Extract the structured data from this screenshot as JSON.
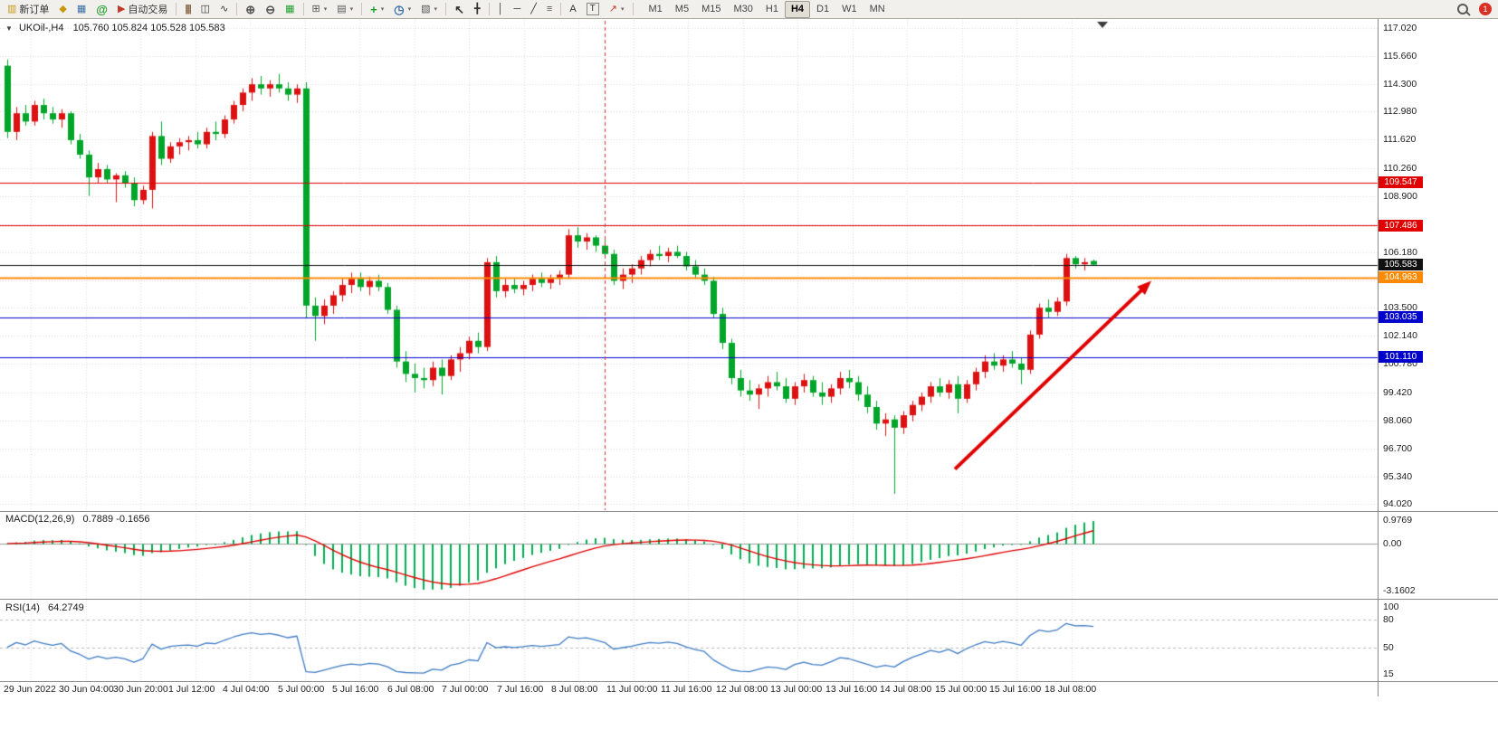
{
  "toolbar": {
    "new_order_label": "新订单",
    "autotrading_label": "自动交易",
    "timeframes": [
      "M1",
      "M5",
      "M15",
      "M30",
      "H1",
      "H4",
      "D1",
      "W1",
      "MN"
    ],
    "active_timeframe": "H4",
    "badge_count": "1",
    "icons": {
      "new_order": "▥",
      "market_watch": "◆",
      "data_window": "▦",
      "community": "@",
      "autotrading": "▶",
      "bars": "|||",
      "candles": "◫",
      "linechart": "∿",
      "zoom_in": "⊕",
      "zoom_out": "⊖",
      "tile": "▦",
      "new_chart": "⊞",
      "profiles": "▤",
      "indicators": "+",
      "periods": "◷",
      "templates": "▧",
      "cursor": "↖",
      "crosshair": "╋",
      "vline": "│",
      "hline": "─",
      "trendline": "╱",
      "fibonacci": "≡",
      "text": "A",
      "label": "T",
      "arrows": "↗",
      "caret": "▾",
      "collapse": "▼"
    }
  },
  "chart_data": [
    {
      "type": "candlestick",
      "title": "UKOil-,H4",
      "ohlc_text": "105.760 105.824 105.528 105.583",
      "timeframe": "H4",
      "up_color": "#dd1111",
      "down_color": "#00a52a",
      "ylim": [
        93.66,
        117.44
      ],
      "y_ticks": [
        "117.020",
        "115.660",
        "114.300",
        "112.980",
        "111.620",
        "110.260",
        "108.900",
        "107.540",
        "106.180",
        "104.820",
        "103.500",
        "102.140",
        "100.780",
        "99.420",
        "98.060",
        "96.700",
        "95.340",
        "94.020"
      ],
      "x_labels": [
        "29 Jun 2022",
        "30 Jun 04:00",
        "30 Jun 20:00",
        "1 Jul 12:00",
        "4 Jul 04:00",
        "5 Jul 00:00",
        "5 Jul 16:00",
        "6 Jul 08:00",
        "7 Jul 00:00",
        "7 Jul 16:00",
        "8 Jul 08:00",
        "11 Jul 00:00",
        "11 Jul 16:00",
        "12 Jul 08:00",
        "13 Jul 00:00",
        "13 Jul 16:00",
        "14 Jul 08:00",
        "15 Jul 00:00",
        "15 Jul 16:00",
        "18 Jul 08:00"
      ],
      "hlines": [
        {
          "price": 109.547,
          "label": "109.547",
          "color": "#e00000",
          "width": 1
        },
        {
          "price": 107.486,
          "label": "107.486",
          "color": "#e00000",
          "width": 1
        },
        {
          "price": 105.583,
          "label": "105.583",
          "color": "#111111",
          "width": 1
        },
        {
          "price": 104.963,
          "label": "104.963",
          "color": "#ff8a00",
          "width": 2
        },
        {
          "price": 103.035,
          "label": "103.035",
          "color": "#0000cd",
          "width": 1
        },
        {
          "price": 101.11,
          "label": "101.110",
          "color": "#0000cd",
          "width": 1
        }
      ],
      "annotations": [
        {
          "type": "trend-arrow",
          "from_bar": 104.7,
          "from_price": 95.7,
          "to_bar": 126.4,
          "to_price": 104.8,
          "color": "#e00000",
          "width": 4
        },
        {
          "type": "vline",
          "bar": 66,
          "color": "#cc3333",
          "style": "dashed"
        }
      ],
      "ohlc": [
        [
          115.2,
          115.5,
          111.7,
          112.0
        ],
        [
          112.0,
          113.2,
          111.6,
          112.9
        ],
        [
          112.9,
          113.3,
          112.3,
          112.5
        ],
        [
          112.5,
          113.5,
          112.3,
          113.3
        ],
        [
          113.3,
          113.6,
          112.6,
          112.9
        ],
        [
          112.9,
          113.2,
          112.4,
          112.6
        ],
        [
          112.6,
          113.1,
          112.2,
          112.9
        ],
        [
          112.9,
          113.0,
          111.4,
          111.6
        ],
        [
          111.6,
          111.9,
          110.7,
          110.9
        ],
        [
          110.9,
          111.1,
          108.9,
          109.8
        ],
        [
          109.8,
          110.5,
          109.5,
          110.2
        ],
        [
          110.2,
          110.4,
          109.5,
          109.7
        ],
        [
          109.7,
          110.0,
          108.6,
          109.9
        ],
        [
          109.9,
          110.1,
          109.3,
          109.5
        ],
        [
          109.5,
          109.8,
          108.4,
          108.7
        ],
        [
          108.7,
          109.4,
          108.5,
          109.2
        ],
        [
          109.2,
          112.0,
          108.3,
          111.8
        ],
        [
          111.8,
          112.5,
          110.4,
          110.7
        ],
        [
          110.7,
          111.5,
          110.5,
          111.3
        ],
        [
          111.3,
          111.7,
          110.9,
          111.5
        ],
        [
          111.5,
          111.8,
          111.1,
          111.6
        ],
        [
          111.6,
          112.0,
          111.2,
          111.4
        ],
        [
          111.4,
          112.2,
          111.2,
          112.0
        ],
        [
          112.0,
          112.5,
          111.6,
          111.9
        ],
        [
          111.9,
          112.8,
          111.7,
          112.6
        ],
        [
          112.6,
          113.5,
          112.4,
          113.3
        ],
        [
          113.3,
          114.1,
          113.0,
          113.9
        ],
        [
          113.9,
          114.6,
          113.5,
          114.3
        ],
        [
          114.3,
          114.7,
          113.8,
          114.1
        ],
        [
          114.1,
          114.5,
          113.7,
          114.3
        ],
        [
          114.3,
          114.8,
          113.9,
          114.1
        ],
        [
          114.1,
          114.4,
          113.5,
          113.8
        ],
        [
          113.8,
          114.3,
          113.4,
          114.1
        ],
        [
          114.1,
          114.4,
          103.0,
          103.6
        ],
        [
          103.6,
          104.0,
          101.9,
          103.1
        ],
        [
          103.1,
          103.9,
          102.7,
          103.6
        ],
        [
          103.6,
          104.3,
          103.2,
          104.1
        ],
        [
          104.1,
          104.9,
          103.8,
          104.6
        ],
        [
          104.6,
          105.2,
          104.2,
          104.9
        ],
        [
          104.9,
          105.2,
          104.3,
          104.5
        ],
        [
          104.5,
          105.0,
          104.1,
          104.8
        ],
        [
          104.8,
          105.1,
          104.3,
          104.5
        ],
        [
          104.5,
          104.7,
          103.2,
          103.4
        ],
        [
          103.4,
          103.6,
          100.6,
          100.9
        ],
        [
          100.9,
          101.4,
          99.9,
          100.3
        ],
        [
          100.3,
          100.8,
          99.4,
          100.1
        ],
        [
          100.1,
          100.6,
          99.6,
          100.0
        ],
        [
          100.0,
          100.9,
          99.7,
          100.6
        ],
        [
          100.6,
          101.0,
          99.3,
          100.2
        ],
        [
          100.2,
          101.2,
          100.0,
          101.0
        ],
        [
          101.0,
          101.6,
          100.4,
          101.3
        ],
        [
          101.3,
          102.1,
          101.0,
          101.9
        ],
        [
          101.9,
          102.3,
          101.3,
          101.6
        ],
        [
          101.6,
          105.9,
          101.4,
          105.7
        ],
        [
          105.7,
          106.0,
          104.0,
          104.3
        ],
        [
          104.3,
          104.9,
          104.0,
          104.6
        ],
        [
          104.6,
          104.9,
          104.2,
          104.4
        ],
        [
          104.4,
          104.8,
          104.1,
          104.6
        ],
        [
          104.6,
          105.1,
          104.3,
          104.9
        ],
        [
          104.9,
          105.2,
          104.5,
          104.7
        ],
        [
          104.7,
          105.1,
          104.4,
          104.9
        ],
        [
          104.9,
          105.3,
          104.6,
          105.1
        ],
        [
          105.1,
          107.3,
          104.9,
          107.0
        ],
        [
          107.0,
          107.4,
          106.4,
          106.7
        ],
        [
          106.7,
          107.1,
          106.3,
          106.9
        ],
        [
          106.9,
          107.0,
          106.2,
          106.5
        ],
        [
          106.5,
          106.8,
          105.9,
          106.1
        ],
        [
          106.1,
          106.3,
          104.6,
          104.8
        ],
        [
          104.8,
          105.4,
          104.4,
          105.1
        ],
        [
          105.1,
          105.6,
          104.7,
          105.4
        ],
        [
          105.4,
          106.0,
          105.1,
          105.8
        ],
        [
          105.8,
          106.3,
          105.5,
          106.1
        ],
        [
          106.1,
          106.5,
          105.8,
          106.0
        ],
        [
          106.0,
          106.4,
          105.7,
          106.2
        ],
        [
          106.2,
          106.5,
          105.9,
          106.0
        ],
        [
          106.0,
          106.2,
          105.3,
          105.5
        ],
        [
          105.5,
          105.8,
          104.9,
          105.1
        ],
        [
          105.1,
          105.4,
          104.6,
          104.8
        ],
        [
          104.8,
          105.0,
          103.0,
          103.2
        ],
        [
          103.2,
          103.5,
          101.5,
          101.8
        ],
        [
          101.8,
          102.0,
          99.8,
          100.1
        ],
        [
          100.1,
          100.5,
          99.2,
          99.5
        ],
        [
          99.5,
          100.0,
          99.0,
          99.3
        ],
        [
          99.3,
          99.8,
          98.6,
          99.6
        ],
        [
          99.6,
          100.2,
          99.2,
          99.9
        ],
        [
          99.9,
          100.4,
          99.5,
          99.7
        ],
        [
          99.7,
          100.1,
          98.9,
          99.1
        ],
        [
          99.1,
          99.9,
          98.8,
          99.7
        ],
        [
          99.7,
          100.3,
          99.4,
          100.0
        ],
        [
          100.0,
          100.2,
          99.2,
          99.4
        ],
        [
          99.4,
          99.9,
          98.8,
          99.2
        ],
        [
          99.2,
          99.8,
          98.9,
          99.6
        ],
        [
          99.6,
          100.4,
          99.3,
          100.1
        ],
        [
          100.1,
          100.5,
          99.6,
          99.9
        ],
        [
          99.9,
          100.2,
          99.0,
          99.3
        ],
        [
          99.3,
          99.7,
          98.4,
          98.7
        ],
        [
          98.7,
          99.0,
          97.6,
          97.9
        ],
        [
          97.9,
          98.4,
          97.3,
          98.1
        ],
        [
          98.1,
          98.3,
          94.5,
          97.7
        ],
        [
          97.7,
          98.5,
          97.4,
          98.3
        ],
        [
          98.3,
          99.0,
          98.0,
          98.8
        ],
        [
          98.8,
          99.4,
          98.5,
          99.2
        ],
        [
          99.2,
          99.9,
          98.9,
          99.7
        ],
        [
          99.7,
          100.1,
          99.2,
          99.4
        ],
        [
          99.4,
          100.0,
          99.1,
          99.8
        ],
        [
          99.8,
          100.2,
          98.4,
          99.1
        ],
        [
          99.1,
          100.0,
          98.9,
          99.8
        ],
        [
          99.8,
          100.6,
          99.5,
          100.4
        ],
        [
          100.4,
          101.2,
          100.1,
          100.9
        ],
        [
          100.9,
          101.3,
          100.5,
          100.7
        ],
        [
          100.7,
          101.2,
          100.4,
          101.0
        ],
        [
          101.0,
          101.4,
          100.6,
          100.8
        ],
        [
          100.8,
          101.1,
          99.8,
          100.5
        ],
        [
          100.5,
          102.4,
          100.3,
          102.2
        ],
        [
          102.2,
          103.7,
          102.0,
          103.5
        ],
        [
          103.5,
          103.9,
          103.0,
          103.3
        ],
        [
          103.3,
          104.0,
          103.1,
          103.8
        ],
        [
          103.8,
          106.1,
          103.6,
          105.9
        ],
        [
          105.9,
          106.0,
          105.4,
          105.6
        ],
        [
          105.6,
          105.9,
          105.3,
          105.7
        ],
        [
          105.76,
          105.824,
          105.528,
          105.583
        ]
      ]
    },
    {
      "type": "bar",
      "label": "MACD(12,26,9)",
      "values_text": "0.7889 -0.1656",
      "current": 0.7889,
      "signal": -0.1656,
      "histogram_color": "#00b050",
      "signal_color": "#e00000",
      "y_ticks": [
        "0.9769",
        "0.00",
        "-3.1602"
      ]
    },
    {
      "type": "line",
      "label": "RSI(14)",
      "value_text": "64.2749",
      "current": 64.2749,
      "line_color": "#3f7cc4",
      "levels": [
        80,
        50
      ],
      "range": [
        15,
        100
      ],
      "y_ticks": [
        "100",
        "80",
        "50",
        "15"
      ]
    }
  ]
}
